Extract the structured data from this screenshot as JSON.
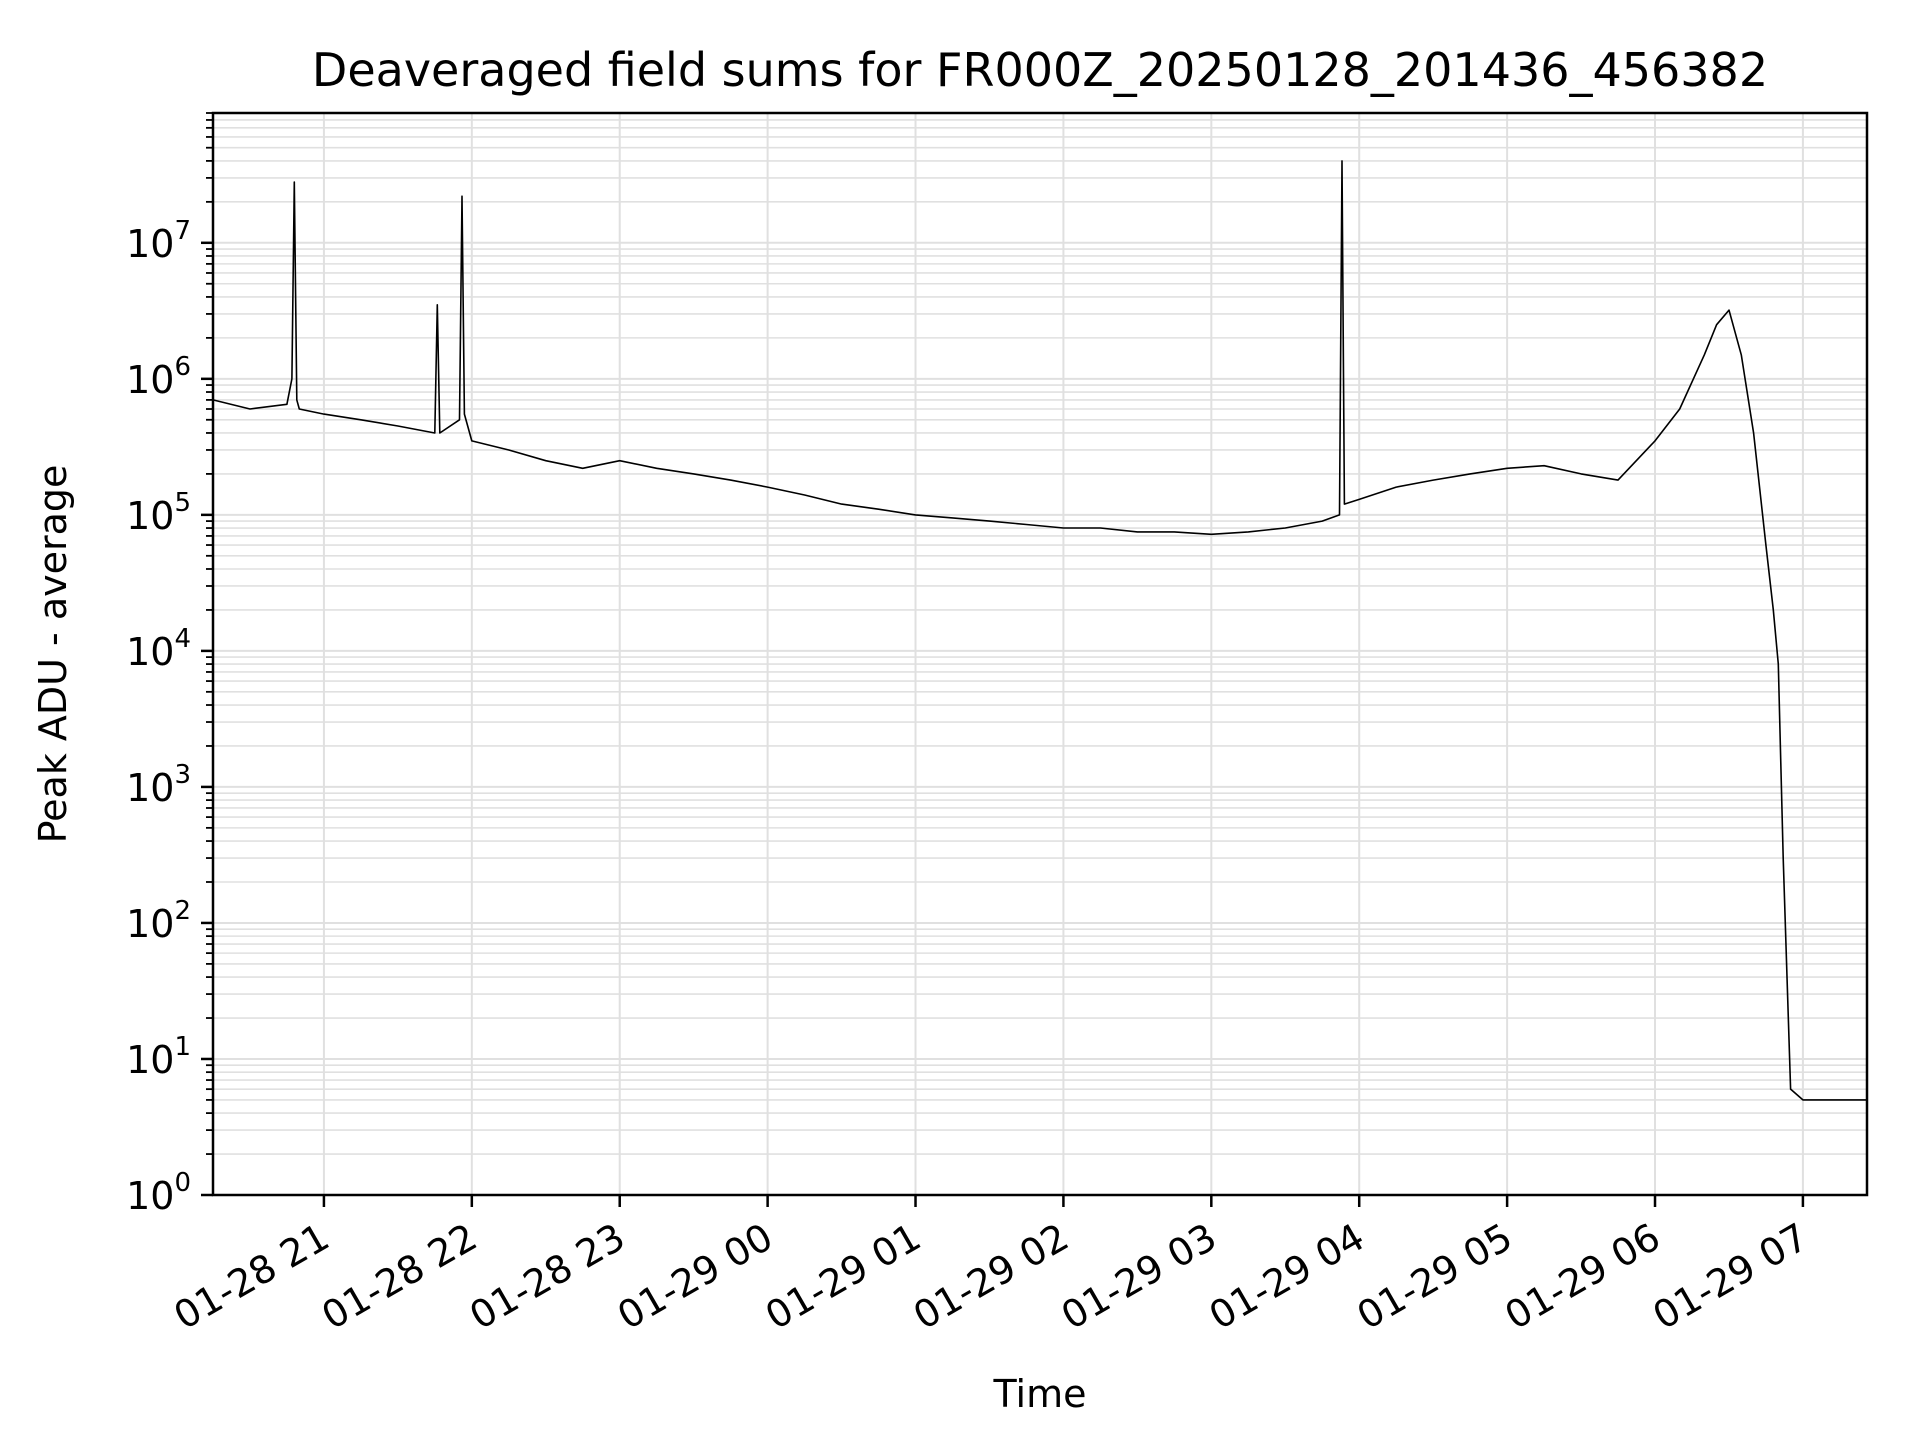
{
  "chart_data": {
    "type": "line",
    "title": "Deaveraged field sums for FR000Z_20250128_201436_456382",
    "xlabel": "Time",
    "ylabel": "Peak ADU - average",
    "yscale": "log",
    "ylim": [
      1,
      90000000
    ],
    "xlim": [
      "2025-01-28 20:15",
      "2025-01-29 07:26"
    ],
    "grid": true,
    "line_color": "#000000",
    "grid_color": "#e0e0e0",
    "x_ticks": [
      {
        "value": "2025-01-28 21:00",
        "label": "01-28 21"
      },
      {
        "value": "2025-01-28 22:00",
        "label": "01-28 22"
      },
      {
        "value": "2025-01-28 23:00",
        "label": "01-28 23"
      },
      {
        "value": "2025-01-29 00:00",
        "label": "01-29 00"
      },
      {
        "value": "2025-01-29 01:00",
        "label": "01-29 01"
      },
      {
        "value": "2025-01-29 02:00",
        "label": "01-29 02"
      },
      {
        "value": "2025-01-29 03:00",
        "label": "01-29 03"
      },
      {
        "value": "2025-01-29 04:00",
        "label": "01-29 04"
      },
      {
        "value": "2025-01-29 05:00",
        "label": "01-29 05"
      },
      {
        "value": "2025-01-29 06:00",
        "label": "01-29 06"
      },
      {
        "value": "2025-01-29 07:00",
        "label": "01-29 07"
      }
    ],
    "y_ticks": [
      {
        "value": 1,
        "base": "10",
        "exp": "0"
      },
      {
        "value": 10,
        "base": "10",
        "exp": "1"
      },
      {
        "value": 100,
        "base": "10",
        "exp": "2"
      },
      {
        "value": 1000,
        "base": "10",
        "exp": "3"
      },
      {
        "value": 10000,
        "base": "10",
        "exp": "4"
      },
      {
        "value": 100000,
        "base": "10",
        "exp": "5"
      },
      {
        "value": 1000000,
        "base": "10",
        "exp": "6"
      },
      {
        "value": 10000000,
        "base": "10",
        "exp": "7"
      }
    ],
    "series": [
      {
        "x": [
          "2025-01-28 20:15",
          "2025-01-28 20:30",
          "2025-01-28 20:45",
          "2025-01-28 20:47",
          "2025-01-28 20:48",
          "2025-01-28 20:49",
          "2025-01-28 20:50",
          "2025-01-28 21:00",
          "2025-01-28 21:15",
          "2025-01-28 21:30",
          "2025-01-28 21:45",
          "2025-01-28 21:46",
          "2025-01-28 21:47",
          "2025-01-28 21:55",
          "2025-01-28 21:56",
          "2025-01-28 21:57",
          "2025-01-28 22:00",
          "2025-01-28 22:15",
          "2025-01-28 22:30",
          "2025-01-28 22:45",
          "2025-01-28 23:00",
          "2025-01-28 23:15",
          "2025-01-28 23:30",
          "2025-01-28 23:45",
          "2025-01-29 00:00",
          "2025-01-29 00:15",
          "2025-01-29 00:30",
          "2025-01-29 00:45",
          "2025-01-29 01:00",
          "2025-01-29 01:15",
          "2025-01-29 01:30",
          "2025-01-29 01:45",
          "2025-01-29 02:00",
          "2025-01-29 02:15",
          "2025-01-29 02:30",
          "2025-01-29 02:45",
          "2025-01-29 03:00",
          "2025-01-29 03:15",
          "2025-01-29 03:30",
          "2025-01-29 03:45",
          "2025-01-29 03:52",
          "2025-01-29 03:53",
          "2025-01-29 03:54",
          "2025-01-29 04:00",
          "2025-01-29 04:15",
          "2025-01-29 04:30",
          "2025-01-29 04:45",
          "2025-01-29 05:00",
          "2025-01-29 05:15",
          "2025-01-29 05:30",
          "2025-01-29 05:45",
          "2025-01-29 06:00",
          "2025-01-29 06:10",
          "2025-01-29 06:20",
          "2025-01-29 06:25",
          "2025-01-29 06:30",
          "2025-01-29 06:35",
          "2025-01-29 06:40",
          "2025-01-29 06:45",
          "2025-01-29 06:48",
          "2025-01-29 06:50",
          "2025-01-29 06:52",
          "2025-01-29 06:55",
          "2025-01-29 07:00",
          "2025-01-29 07:10",
          "2025-01-29 07:20",
          "2025-01-29 07:26"
        ],
        "y": [
          700000,
          600000,
          650000,
          1000000,
          28000000,
          700000,
          600000,
          550000,
          500000,
          450000,
          400000,
          3500000,
          400000,
          500000,
          22000000,
          550000,
          350000,
          300000,
          250000,
          220000,
          250000,
          220000,
          200000,
          180000,
          160000,
          140000,
          120000,
          110000,
          100000,
          95000,
          90000,
          85000,
          80000,
          80000,
          75000,
          75000,
          72000,
          75000,
          80000,
          90000,
          100000,
          40000000,
          120000,
          130000,
          160000,
          180000,
          200000,
          220000,
          230000,
          200000,
          180000,
          350000,
          600000,
          1500000,
          2500000,
          3200000,
          1500000,
          400000,
          60000,
          20000,
          8000,
          300,
          6,
          5,
          5,
          5,
          5
        ]
      }
    ]
  }
}
